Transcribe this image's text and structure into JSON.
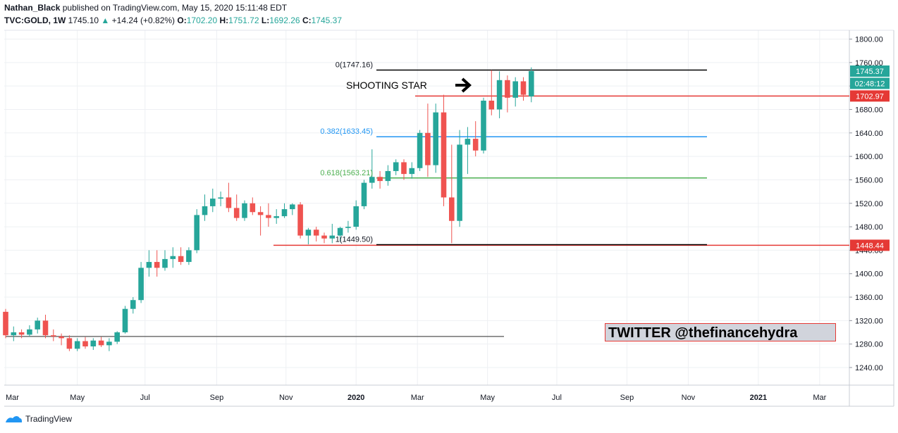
{
  "header": {
    "line1_user": "Nathan_Black",
    "line1_rest": "published on TradingView.com, May 15, 2020 15:11:48 EDT",
    "symbol": "TVC:GOLD, 1W",
    "last": "1745.10",
    "change_arrow": "▲",
    "change": "+14.24 (+0.82%)",
    "o_label": "O:",
    "o_val": "1702.20",
    "h_label": "H:",
    "h_val": "1751.72",
    "l_label": "L:",
    "l_val": "1692.26",
    "c_label": "C:",
    "c_val": "1745.37"
  },
  "annotations": {
    "shooting_star": "SHOOTING STAR",
    "twitter": "TWITTER @thefinancehydra",
    "arrow_icon": "right-arrow-icon"
  },
  "footer": {
    "brand": "TradingView",
    "logo_icon": "tradingview-logo-icon"
  },
  "colors": {
    "up": "#26a69a",
    "down": "#ef5350",
    "fib0": "#000000",
    "fib382": "#2196f3",
    "fib618": "#4caf50",
    "fib1": "#000000",
    "red_line": "#e53935",
    "grid": "#eef0f3"
  },
  "chart_data": {
    "type": "candlestick",
    "y_axis": {
      "min": 1210,
      "max": 1815,
      "ticks": [
        1240,
        1280,
        1320,
        1360,
        1400,
        1440,
        1480,
        1520,
        1560,
        1600,
        1640,
        1680,
        1720,
        1760,
        1800
      ],
      "tick_labels": [
        "1240.00",
        "1280.00",
        "1320.00",
        "1360.00",
        "1400.00",
        "1440.00",
        "1480.00",
        "1520.00",
        "1560.00",
        "1600.00",
        "1640.00",
        "1680.00",
        "1720.00",
        "1760.00",
        "1800.00"
      ]
    },
    "x_axis": {
      "labels": [
        "Mar",
        "May",
        "Jul",
        "Sep",
        "Nov",
        "2020",
        "Mar",
        "May",
        "Jul",
        "Sep",
        "Nov",
        "2021",
        "Mar"
      ],
      "label_weeks": [
        0,
        9,
        17.5,
        26.5,
        35.2,
        44,
        51.7,
        60.5,
        69.2,
        78,
        85.7,
        94.5,
        102.2
      ]
    },
    "candles": [
      {
        "o": 1335,
        "h": 1340,
        "l": 1290,
        "c": 1295
      },
      {
        "o": 1295,
        "h": 1310,
        "l": 1285,
        "c": 1300
      },
      {
        "o": 1300,
        "h": 1305,
        "l": 1290,
        "c": 1296
      },
      {
        "o": 1296,
        "h": 1312,
        "l": 1293,
        "c": 1305
      },
      {
        "o": 1305,
        "h": 1325,
        "l": 1298,
        "c": 1320
      },
      {
        "o": 1320,
        "h": 1330,
        "l": 1290,
        "c": 1295
      },
      {
        "o": 1295,
        "h": 1305,
        "l": 1285,
        "c": 1293
      },
      {
        "o": 1293,
        "h": 1298,
        "l": 1278,
        "c": 1290
      },
      {
        "o": 1290,
        "h": 1295,
        "l": 1268,
        "c": 1272
      },
      {
        "o": 1272,
        "h": 1290,
        "l": 1268,
        "c": 1285
      },
      {
        "o": 1285,
        "h": 1292,
        "l": 1272,
        "c": 1276
      },
      {
        "o": 1276,
        "h": 1290,
        "l": 1270,
        "c": 1286
      },
      {
        "o": 1286,
        "h": 1292,
        "l": 1275,
        "c": 1278
      },
      {
        "o": 1278,
        "h": 1290,
        "l": 1268,
        "c": 1284
      },
      {
        "o": 1284,
        "h": 1302,
        "l": 1280,
        "c": 1300
      },
      {
        "o": 1300,
        "h": 1345,
        "l": 1298,
        "c": 1340
      },
      {
        "o": 1340,
        "h": 1360,
        "l": 1332,
        "c": 1355
      },
      {
        "o": 1355,
        "h": 1420,
        "l": 1350,
        "c": 1410
      },
      {
        "o": 1410,
        "h": 1440,
        "l": 1395,
        "c": 1420
      },
      {
        "o": 1420,
        "h": 1440,
        "l": 1395,
        "c": 1410
      },
      {
        "o": 1410,
        "h": 1440,
        "l": 1405,
        "c": 1425
      },
      {
        "o": 1425,
        "h": 1445,
        "l": 1410,
        "c": 1430
      },
      {
        "o": 1430,
        "h": 1445,
        "l": 1415,
        "c": 1420
      },
      {
        "o": 1420,
        "h": 1445,
        "l": 1415,
        "c": 1440
      },
      {
        "o": 1440,
        "h": 1510,
        "l": 1435,
        "c": 1500
      },
      {
        "o": 1500,
        "h": 1535,
        "l": 1490,
        "c": 1515
      },
      {
        "o": 1515,
        "h": 1545,
        "l": 1505,
        "c": 1528
      },
      {
        "o": 1528,
        "h": 1540,
        "l": 1515,
        "c": 1530
      },
      {
        "o": 1530,
        "h": 1555,
        "l": 1505,
        "c": 1512
      },
      {
        "o": 1512,
        "h": 1535,
        "l": 1490,
        "c": 1495
      },
      {
        "o": 1495,
        "h": 1525,
        "l": 1490,
        "c": 1520
      },
      {
        "o": 1520,
        "h": 1530,
        "l": 1500,
        "c": 1505
      },
      {
        "o": 1505,
        "h": 1515,
        "l": 1465,
        "c": 1500
      },
      {
        "o": 1500,
        "h": 1520,
        "l": 1480,
        "c": 1495
      },
      {
        "o": 1495,
        "h": 1510,
        "l": 1485,
        "c": 1498
      },
      {
        "o": 1498,
        "h": 1520,
        "l": 1495,
        "c": 1510
      },
      {
        "o": 1510,
        "h": 1520,
        "l": 1500,
        "c": 1518
      },
      {
        "o": 1518,
        "h": 1522,
        "l": 1460,
        "c": 1465
      },
      {
        "o": 1465,
        "h": 1478,
        "l": 1450,
        "c": 1475
      },
      {
        "o": 1475,
        "h": 1480,
        "l": 1455,
        "c": 1465
      },
      {
        "o": 1465,
        "h": 1470,
        "l": 1452,
        "c": 1460
      },
      {
        "o": 1460,
        "h": 1485,
        "l": 1452,
        "c": 1465
      },
      {
        "o": 1465,
        "h": 1480,
        "l": 1455,
        "c": 1478
      },
      {
        "o": 1478,
        "h": 1490,
        "l": 1470,
        "c": 1480
      },
      {
        "o": 1480,
        "h": 1525,
        "l": 1475,
        "c": 1515
      },
      {
        "o": 1515,
        "h": 1560,
        "l": 1510,
        "c": 1555
      },
      {
        "o": 1555,
        "h": 1612,
        "l": 1545,
        "c": 1565
      },
      {
        "o": 1565,
        "h": 1575,
        "l": 1545,
        "c": 1558
      },
      {
        "o": 1558,
        "h": 1585,
        "l": 1550,
        "c": 1575
      },
      {
        "o": 1575,
        "h": 1595,
        "l": 1568,
        "c": 1590
      },
      {
        "o": 1590,
        "h": 1595,
        "l": 1560,
        "c": 1570
      },
      {
        "o": 1570,
        "h": 1590,
        "l": 1562,
        "c": 1580
      },
      {
        "o": 1580,
        "h": 1645,
        "l": 1575,
        "c": 1640
      },
      {
        "o": 1640,
        "h": 1690,
        "l": 1565,
        "c": 1585
      },
      {
        "o": 1585,
        "h": 1690,
        "l": 1572,
        "c": 1675
      },
      {
        "o": 1675,
        "h": 1705,
        "l": 1515,
        "c": 1530
      },
      {
        "o": 1530,
        "h": 1620,
        "l": 1452,
        "c": 1490
      },
      {
        "o": 1490,
        "h": 1645,
        "l": 1480,
        "c": 1620
      },
      {
        "o": 1620,
        "h": 1650,
        "l": 1570,
        "c": 1630
      },
      {
        "o": 1630,
        "h": 1660,
        "l": 1600,
        "c": 1610
      },
      {
        "o": 1610,
        "h": 1700,
        "l": 1605,
        "c": 1695
      },
      {
        "o": 1695,
        "h": 1747,
        "l": 1670,
        "c": 1680
      },
      {
        "o": 1680,
        "h": 1745,
        "l": 1665,
        "c": 1730
      },
      {
        "o": 1730,
        "h": 1738,
        "l": 1675,
        "c": 1700
      },
      {
        "o": 1700,
        "h": 1735,
        "l": 1685,
        "c": 1728
      },
      {
        "o": 1728,
        "h": 1735,
        "l": 1695,
        "c": 1705
      },
      {
        "o": 1702.2,
        "h": 1751.72,
        "l": 1692.26,
        "c": 1745.37
      }
    ],
    "fib_levels": [
      {
        "label": "0(1747.16)",
        "value": 1747.16
      },
      {
        "label": "0.382(1633.45)",
        "value": 1633.45
      },
      {
        "label": "0.618(1563.21)",
        "value": 1563.21
      },
      {
        "label": "1(1449.50)",
        "value": 1449.5
      }
    ],
    "support_line": 1293,
    "red_lines": [
      1702.97,
      1448.44
    ],
    "price_labels": [
      {
        "text": "1745.37",
        "value": 1745.37,
        "color": "#26a69a"
      },
      {
        "text": "02:48:12",
        "value": 1724.5,
        "color": "#26a69a"
      },
      {
        "text": "1702.97",
        "value": 1702.97,
        "color": "#e53935"
      },
      {
        "text": "1448.44",
        "value": 1448.44,
        "color": "#e53935"
      }
    ]
  }
}
